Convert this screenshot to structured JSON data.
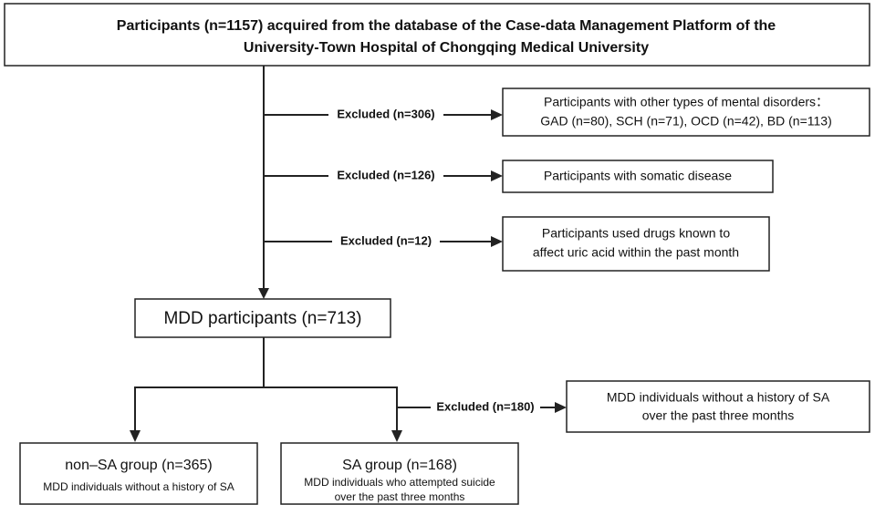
{
  "header": {
    "lines": [
      "Participants (n=1157) acquired from the database of the Case-data Management Platform of the",
      "University-Town Hospital of Chongqing Medical University"
    ]
  },
  "exclusions": [
    {
      "label": "Excluded (n=306)",
      "lines": [
        "Participants with other types of mental disorders：",
        "GAD (n=80), SCH (n=71), OCD (n=42), BD (n=113)"
      ]
    },
    {
      "label": "Excluded (n=126)",
      "lines": [
        "Participants with somatic disease"
      ]
    },
    {
      "label": "Excluded (n=12)",
      "lines": [
        "Participants used drugs known to",
        "affect uric acid within the past month"
      ]
    }
  ],
  "mdd": {
    "label": "MDD participants (n=713)"
  },
  "split_exclusion": {
    "label": "Excluded (n=180)",
    "lines": [
      "MDD individuals without a history of SA",
      "over the past three months"
    ]
  },
  "groups": [
    {
      "title": "non–SA group (n=365)",
      "lines": [
        "MDD individuals without a history of SA"
      ]
    },
    {
      "title": "SA group (n=168)",
      "lines": [
        "MDD individuals who attempted suicide",
        "over the past three months"
      ]
    }
  ]
}
